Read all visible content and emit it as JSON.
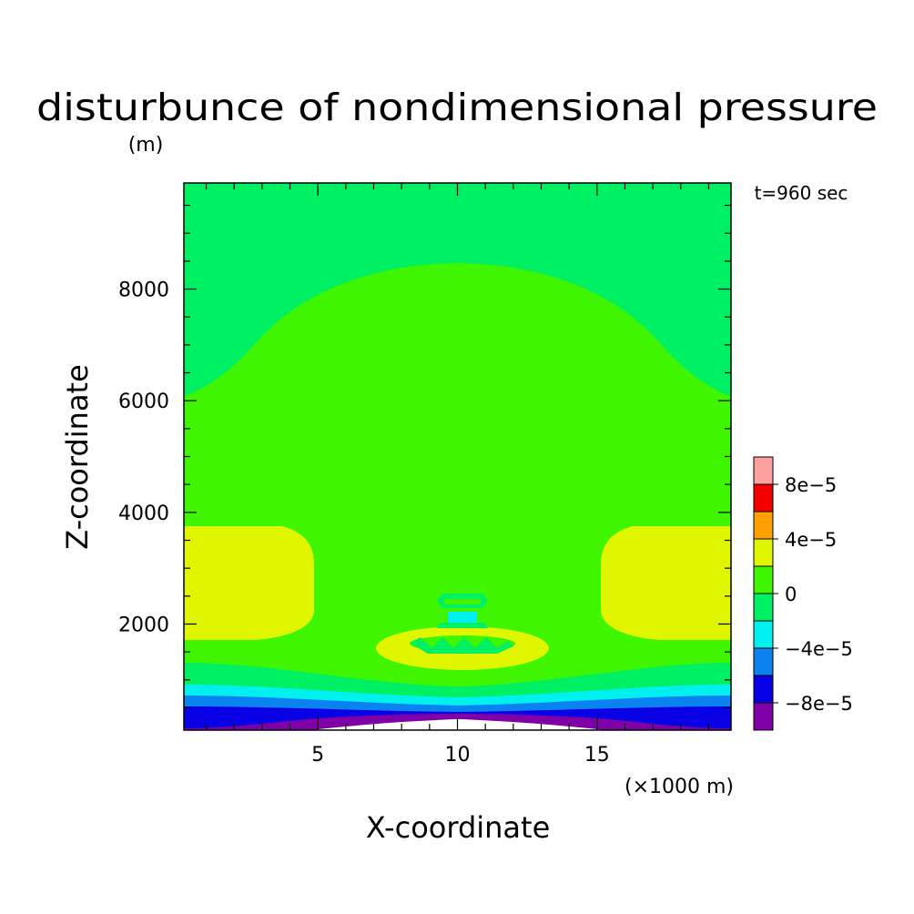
{
  "chart_data": {
    "type": "contour",
    "title": "disturbunce of nondimensional pressure",
    "ylabel_units": "(m)",
    "time_label": "t=960 sec",
    "xlabel": "X-coordinate",
    "xlabel_units": "(×1000 m)",
    "ylabel": "Z-coordinate",
    "xlim": [
      0.2,
      19.8
    ],
    "ylim": [
      100,
      9900
    ],
    "x_ticks": [
      {
        "value": 5,
        "label": "5"
      },
      {
        "value": 10,
        "label": "10"
      },
      {
        "value": 15,
        "label": "15"
      }
    ],
    "y_ticks": [
      {
        "value": 2000,
        "label": "2000"
      },
      {
        "value": 4000,
        "label": "4000"
      },
      {
        "value": 6000,
        "label": "6000"
      },
      {
        "value": 8000,
        "label": "8000"
      }
    ],
    "colorbar": {
      "levels": [
        {
          "upper": -8e-05,
          "color": "#7f00a6"
        },
        {
          "upper": -6e-05,
          "color": "#0a00e6"
        },
        {
          "upper": -4e-05,
          "color": "#0a82f0"
        },
        {
          "upper": -2e-05,
          "color": "#00f0f0"
        },
        {
          "upper": 0,
          "color": "#00f064"
        },
        {
          "upper": 2e-05,
          "color": "#40f500"
        },
        {
          "upper": 4e-05,
          "color": "#e0f500"
        },
        {
          "upper": 6e-05,
          "color": "#ffa000"
        },
        {
          "upper": 8e-05,
          "color": "#f50000"
        },
        {
          "upper": 0.0001,
          "color": "#ffa0a0"
        }
      ],
      "tick_labels": [
        {
          "value": -8e-05,
          "label": "−8e−5"
        },
        {
          "value": -4e-05,
          "label": "−4e−5"
        },
        {
          "value": 0,
          "label": "0"
        },
        {
          "value": 4e-05,
          "label": "4e−5"
        },
        {
          "value": 8e-05,
          "label": "8e−5"
        }
      ]
    },
    "colors": {
      "purple": "#7f00a6",
      "blue": "#0a00e6",
      "lightblue": "#0a82f0",
      "cyan": "#00f0f0",
      "green": "#00f064",
      "lime": "#40f500",
      "yellow": "#e0f500"
    }
  }
}
